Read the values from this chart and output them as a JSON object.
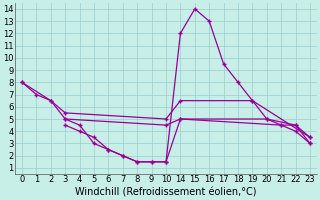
{
  "background_color": "#c8eee8",
  "line_color": "#990099",
  "grid_color": "#99cccc",
  "xlabel": "Windchill (Refroidissement éolien,°C)",
  "xlabel_fontsize": 7,
  "tick_fontsize": 6,
  "xlim": [
    -0.5,
    23.5
  ],
  "ylim": [
    0.5,
    14.5
  ],
  "xticks": [
    0,
    1,
    2,
    3,
    4,
    5,
    6,
    7,
    8,
    9,
    10,
    14,
    15,
    16,
    17,
    18,
    19,
    20,
    21,
    22,
    23
  ],
  "yticks": [
    1,
    2,
    3,
    4,
    5,
    6,
    7,
    8,
    9,
    10,
    11,
    12,
    13,
    14
  ],
  "lines": [
    {
      "x": [
        0,
        1,
        2,
        3,
        4,
        5,
        6,
        7,
        8,
        9,
        10,
        14,
        15,
        16,
        17,
        18,
        19,
        20,
        21,
        22,
        23
      ],
      "y": [
        8,
        7,
        6.5,
        5,
        4.5,
        3,
        2.5,
        2,
        1.5,
        1.5,
        1.5,
        12,
        14,
        13,
        9.5,
        8,
        6.5,
        5,
        4.5,
        4.5,
        3
      ]
    },
    {
      "x": [
        0,
        2,
        3,
        10,
        14,
        19,
        23
      ],
      "y": [
        8,
        6.5,
        5.5,
        5,
        6.5,
        6.5,
        3.5
      ]
    },
    {
      "x": [
        3,
        10,
        14,
        20,
        22,
        23
      ],
      "y": [
        5,
        4.5,
        5,
        5,
        4.5,
        3.5
      ]
    },
    {
      "x": [
        3,
        4,
        5,
        6,
        7,
        8,
        9,
        10,
        14,
        21,
        22,
        23
      ],
      "y": [
        4.5,
        4,
        3.5,
        2.5,
        2,
        1.5,
        1.5,
        1.5,
        5,
        4.5,
        4,
        3
      ]
    }
  ]
}
